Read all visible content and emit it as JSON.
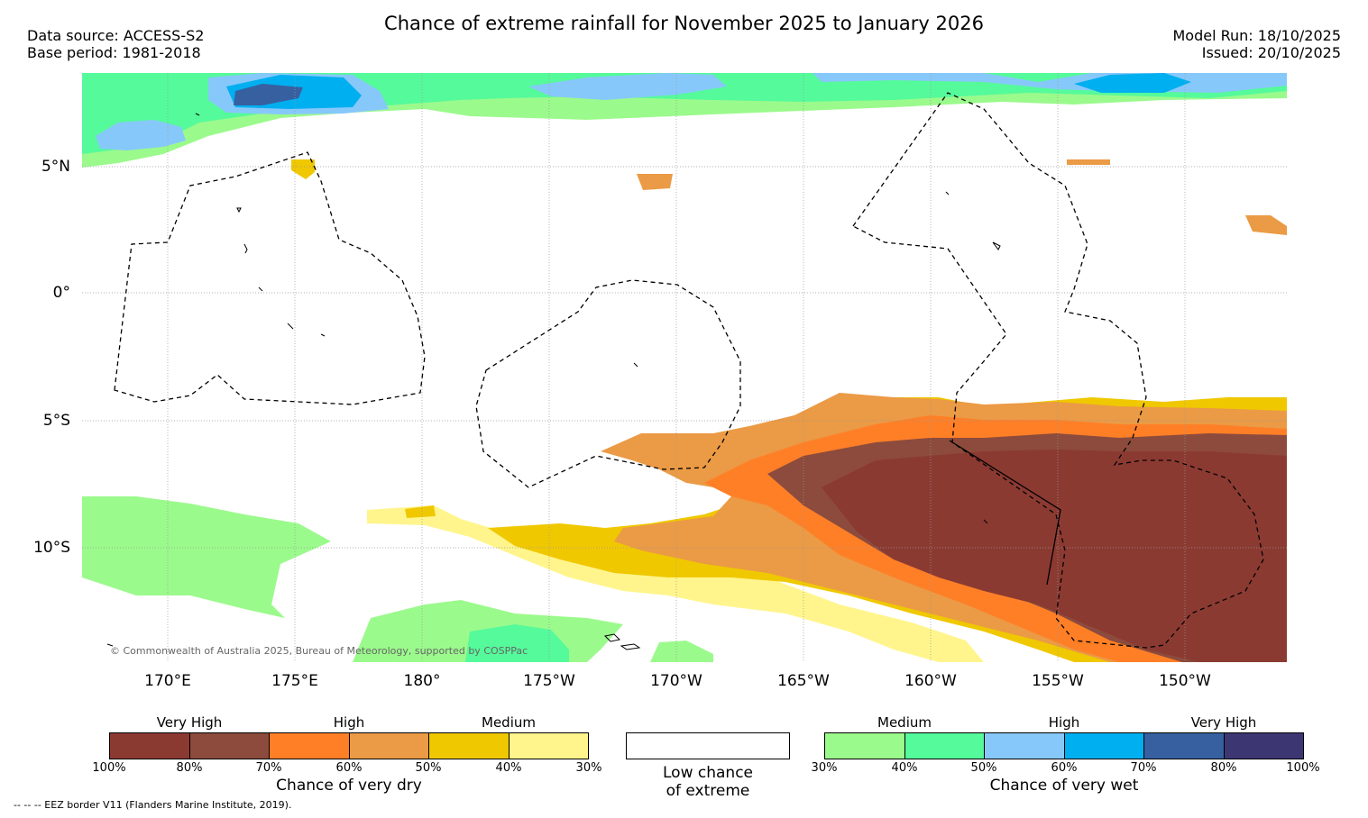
{
  "title": "Chance of extreme rainfall for November 2025 to January 2026",
  "meta_left": [
    "Data source: ACCESS-S2",
    "Base period: 1981-2018"
  ],
  "meta_right": [
    "Model Run: 18/10/2025",
    "Issued: 20/10/2025"
  ],
  "map": {
    "lat_labels": [
      "5°N",
      "0°",
      "5°S",
      "10°S"
    ],
    "lon_labels": [
      "170°E",
      "175°E",
      "180°",
      "175°W",
      "170°W",
      "165°W",
      "160°W",
      "155°W",
      "150°W"
    ],
    "credit": "© Commonwealth of Australia 2025, Bureau of Meteorology, supported by COSPPac",
    "colors": {
      "dry_100_80": "#8b3a32",
      "dry_80_70": "#8c4b3c",
      "dry_70_60": "#ff7f27",
      "dry_60_50": "#eb9a45",
      "dry_50_40": "#f0c800",
      "dry_40_30": "#fff58c",
      "wet_30_40": "#9bfa8c",
      "wet_40_50": "#55fa9b",
      "wet_50_60": "#87c8fa",
      "wet_60_70": "#00aff0",
      "wet_70_80": "#3760a0",
      "wet_80_100": "#3c3773"
    }
  },
  "legend": {
    "dry": {
      "categories": [
        "Very High",
        "High",
        "Medium"
      ],
      "ticks": [
        "100%",
        "80%",
        "70%",
        "60%",
        "50%",
        "40%",
        "30%"
      ],
      "caption": "Chance of very dry",
      "colors": [
        "#8b3a32",
        "#8c4b3c",
        "#ff7f27",
        "#eb9a45",
        "#f0c800",
        "#fff58c"
      ]
    },
    "low": {
      "caption_line1": "Low chance",
      "caption_line2": "of extreme"
    },
    "wet": {
      "categories": [
        "Medium",
        "High",
        "Very High"
      ],
      "ticks": [
        "30%",
        "40%",
        "50%",
        "60%",
        "70%",
        "80%",
        "100%"
      ],
      "caption": "Chance of very wet",
      "colors": [
        "#9bfa8c",
        "#55fa9b",
        "#87c8fa",
        "#00aff0",
        "#3760a0",
        "#3c3773"
      ]
    }
  },
  "footnote": "-- -- -- EEZ border V11 (Flanders Marine Institute, 2019)."
}
